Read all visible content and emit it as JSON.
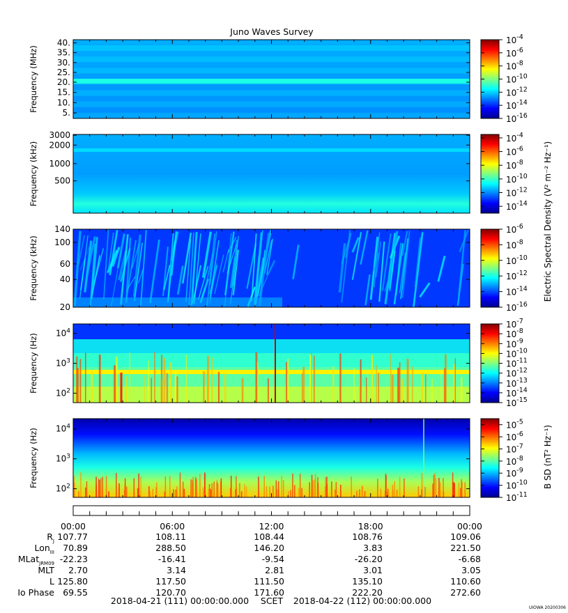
{
  "title": "Juno Waves Survey",
  "panels": [
    {
      "id": "p1",
      "ylabel": "Frequency (MHz)",
      "ticks": [
        {
          "label": "40.",
          "frac": 0.96
        },
        {
          "label": "35.",
          "frac": 0.835
        },
        {
          "label": "30.",
          "frac": 0.71
        },
        {
          "label": "25.",
          "frac": 0.585
        },
        {
          "label": "20.",
          "frac": 0.46
        },
        {
          "label": "15.",
          "frac": 0.33
        },
        {
          "label": "10.",
          "frac": 0.2
        },
        {
          "label": "5.",
          "frac": 0.07
        }
      ],
      "colorbar": {
        "exp_min": -16,
        "exp_max": -4,
        "labels": [
          "-16",
          "-14",
          "-12",
          "-10",
          "-8",
          "-6",
          "-4"
        ]
      }
    },
    {
      "id": "p2",
      "ylabel": "Frequency (kHz)",
      "ticks": [
        {
          "label": "3000",
          "frac": 0.99
        },
        {
          "label": "2000",
          "frac": 0.865
        },
        {
          "label": "1000",
          "frac": 0.63
        },
        {
          "label": "500",
          "frac": 0.41
        }
      ],
      "colorbar": {
        "exp_min": -15,
        "exp_max": -3.5,
        "labels": [
          "-14",
          "-12",
          "-10",
          "-8",
          "-6",
          "-4"
        ]
      }
    },
    {
      "id": "p3",
      "ylabel": "Frequency (kHz)",
      "ticks": [
        {
          "label": "140",
          "frac": 1.0
        },
        {
          "label": "100",
          "frac": 0.83
        },
        {
          "label": "60",
          "frac": 0.555
        },
        {
          "label": "40",
          "frac": 0.355
        },
        {
          "label": "20",
          "frac": 0.0
        }
      ],
      "colorbar": {
        "exp_min": -16,
        "exp_max": -6,
        "labels": [
          "-16",
          "-14",
          "-12",
          "-10",
          "-8",
          "-6"
        ]
      }
    },
    {
      "id": "p4",
      "ylabel": "Frequency (Hz)",
      "ticks": [
        {
          "base": "10",
          "exp": "4",
          "frac": 0.88
        },
        {
          "base": "10",
          "exp": "3",
          "frac": 0.5
        },
        {
          "base": "10",
          "exp": "2",
          "frac": 0.12
        }
      ],
      "colorbar": {
        "exp_min": -15,
        "exp_max": -7,
        "labels": [
          "-15",
          "-14",
          "-13",
          "-12",
          "-11",
          "-10",
          "-9",
          "-8",
          "-7"
        ]
      }
    },
    {
      "id": "p5",
      "ylabel": "Frequency (Hz)",
      "ticks": [
        {
          "base": "10",
          "exp": "4",
          "frac": 0.87
        },
        {
          "base": "10",
          "exp": "3",
          "frac": 0.49
        },
        {
          "base": "10",
          "exp": "2",
          "frac": 0.11
        }
      ],
      "colorbar": {
        "exp_min": -11,
        "exp_max": -4.5,
        "labels": [
          "-11",
          "-10",
          "-9",
          "-8",
          "-7",
          "-6",
          "-5"
        ]
      }
    }
  ],
  "colorbar_title_e": "Electric Spectral Density (V² m⁻² Hz⁻¹)",
  "colorbar_title_b": "B SD (nT² Hz⁻¹)",
  "time_axis": {
    "ticks": [
      "00:00",
      "06:00",
      "12:00",
      "18:00",
      "00:00"
    ],
    "start": "2018-04-21 (111) 00:00:00.000",
    "center": "SCET",
    "end": "2018-04-22 (112) 00:00:00.000"
  },
  "ephemeris": [
    {
      "name": "R",
      "sub": "J",
      "values": [
        "107.77",
        "108.11",
        "108.44",
        "108.76",
        "109.06"
      ]
    },
    {
      "name": "Lon",
      "sub": "III",
      "values": [
        "70.89",
        "288.50",
        "146.20",
        "3.83",
        "221.50"
      ]
    },
    {
      "name": "MLat",
      "sub": "JRM09",
      "values": [
        "-22.23",
        "-16.41",
        "-9.54",
        "-26.20",
        "-6.68"
      ]
    },
    {
      "name": "MLT",
      "sub": "",
      "values": [
        "2.70",
        "3.14",
        "2.81",
        "3.01",
        "3.05"
      ]
    },
    {
      "name": "L",
      "sub": "",
      "values": [
        "125.80",
        "117.50",
        "111.50",
        "135.10",
        "110.60"
      ]
    },
    {
      "name": "Io Phase",
      "sub": "",
      "values": [
        "69.55",
        "120.70",
        "171.60",
        "222.20",
        "272.60"
      ]
    }
  ],
  "footer": "UIOWA 20200306",
  "colors": {
    "jet": [
      "#00008f",
      "#0000ff",
      "#0080ff",
      "#00ffff",
      "#80ff80",
      "#ffff00",
      "#ff8000",
      "#ff0000",
      "#800000"
    ]
  },
  "chart_data": {
    "type": "heatmap",
    "title": "Juno Waves Survey",
    "x_range": [
      "2018-04-21 00:00",
      "2018-04-22 00:00"
    ],
    "panels": [
      {
        "ylabel": "Frequency (MHz)",
        "ylim": [
          3.5,
          41
        ],
        "zlim_log10": [
          -16,
          -4
        ],
        "background_log10": -12.3,
        "bands": [
          {
            "freq": 21,
            "log10": -11.2
          }
        ]
      },
      {
        "ylabel": "Frequency (kHz)",
        "ylim": [
          140,
          3000
        ],
        "scale": "log",
        "zlim_log10": [
          -15,
          -3.5
        ],
        "background_log10": -11.5,
        "bands": [
          {
            "freq": 1650,
            "log10": -11.1
          },
          {
            "freq": 200,
            "log10": -10.2
          }
        ]
      },
      {
        "ylabel": "Frequency (kHz)",
        "ylim": [
          20,
          140
        ],
        "zlim_log10": [
          -16,
          -6
        ],
        "background_log10": -14.2
      },
      {
        "ylabel": "Frequency (Hz)",
        "ylim": [
          50,
          20000
        ],
        "scale": "log",
        "zlim_log10": [
          -15,
          -7
        ],
        "background_log10": -11.3
      },
      {
        "ylabel": "Frequency (Hz)",
        "ylim": [
          50,
          20000
        ],
        "scale": "log",
        "zlim_log10": [
          -11,
          -4.5
        ],
        "background_log10": -8.5
      }
    ]
  }
}
